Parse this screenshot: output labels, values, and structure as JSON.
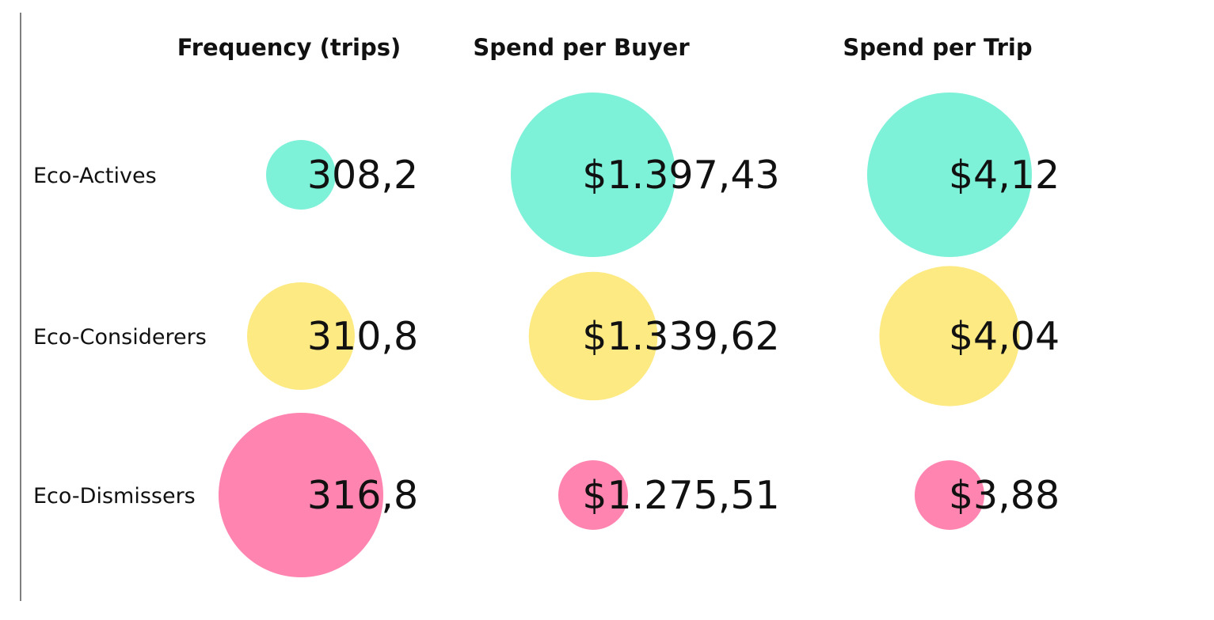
{
  "chart_data": {
    "type": "bubble-table",
    "columns": [
      "Frequency (trips)",
      "Spend per Buyer",
      "Spend per Trip"
    ],
    "rows": [
      "Eco-Actives",
      "Eco-Considerers",
      "Eco-Dismissers"
    ],
    "values": [
      [
        308.2,
        1397.43,
        4.12
      ],
      [
        310.8,
        1339.62,
        4.04
      ],
      [
        316.8,
        1275.51,
        3.88
      ]
    ],
    "value_labels": [
      [
        "308,2",
        "$1.397,43",
        "$4,12"
      ],
      [
        "310,8",
        "$1.339,62",
        "$4,04"
      ],
      [
        "316,8",
        "$1.275,51",
        "$3,88"
      ]
    ],
    "row_colors": [
      "#7ef1d9",
      "#fdea82",
      "#ff85b0"
    ],
    "bubble_size": "scaled within each column from smallest to largest value"
  },
  "colors": {
    "text": "#111111",
    "axis_line": "#555555",
    "background": "#ffffff"
  }
}
